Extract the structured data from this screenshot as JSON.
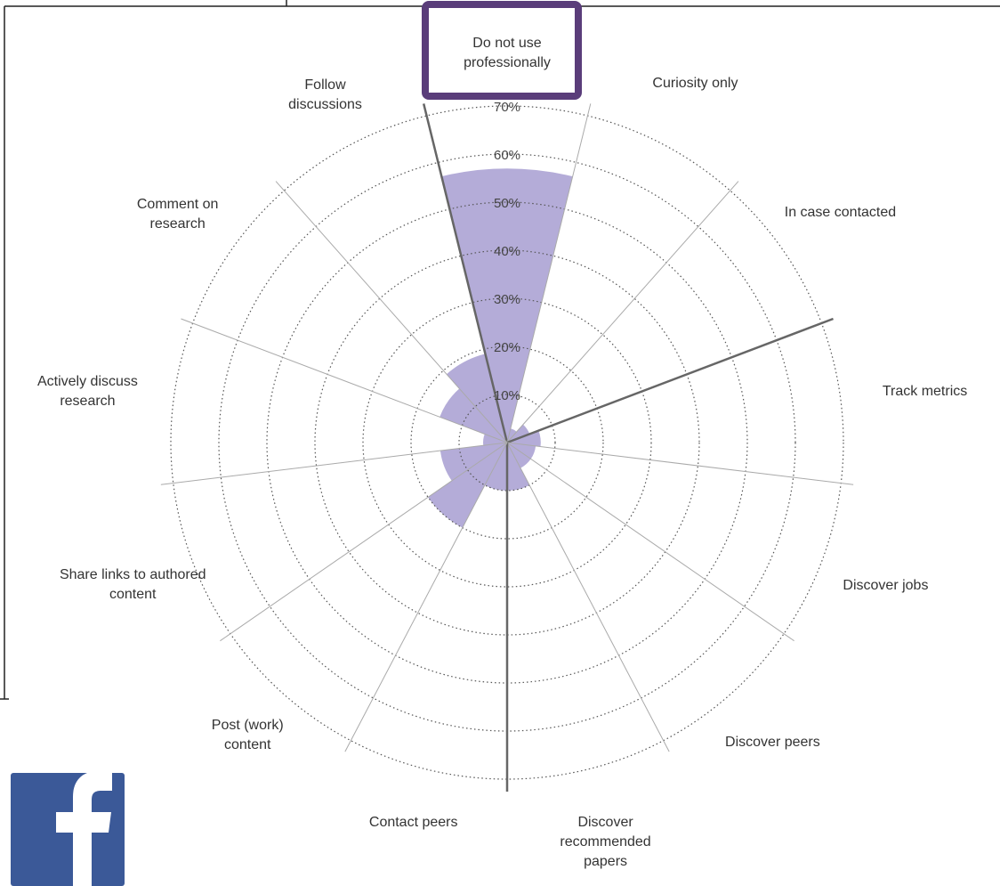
{
  "chart_data": {
    "type": "polar-area",
    "categories": [
      "Do not use professionally",
      "Curiosity only",
      "In case contacted",
      "Track metrics",
      "Discover jobs",
      "Discover peers",
      "Discover recommended papers",
      "Contact peers",
      "Post (work) content",
      "Share links to authored content",
      "Actively discuss research",
      "Comment on research",
      "Follow discussions"
    ],
    "values": [
      57,
      3,
      5,
      7,
      6,
      6,
      10,
      10,
      20,
      14,
      5,
      15,
      19
    ],
    "color": "#b4acd8",
    "rlim": [
      0,
      70
    ],
    "rticks": [
      {
        "value": 10,
        "label": "10%"
      },
      {
        "value": 20,
        "label": "20%"
      },
      {
        "value": 30,
        "label": "30%"
      },
      {
        "value": 40,
        "label": "40%"
      },
      {
        "value": 50,
        "label": "50%"
      },
      {
        "value": 60,
        "label": "60%"
      },
      {
        "value": 70,
        "label": "70%"
      }
    ],
    "grid": true
  }
}
